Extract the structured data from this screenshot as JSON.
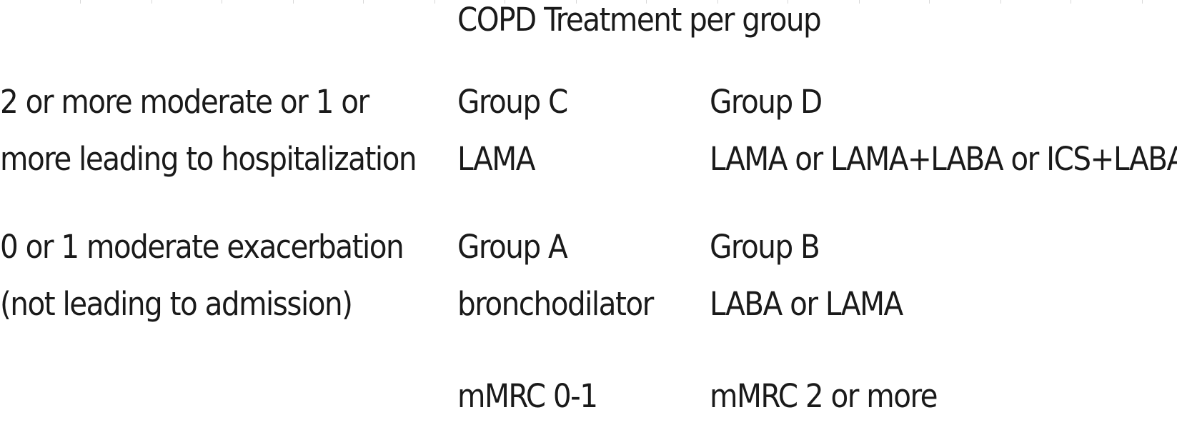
{
  "title": "COPD Treatment per group",
  "rows": {
    "high_risk_label": [
      "2 or more moderate or 1 or",
      "more leading to hospitalization"
    ],
    "low_risk_label": [
      "0 or 1 moderate exacerbation",
      "(not leading to admission)"
    ]
  },
  "groups": {
    "c": {
      "name": "Group C",
      "treatment": "LAMA"
    },
    "d": {
      "name": "Group D",
      "treatment": "LAMA or LAMA+LABA or ICS+LABA"
    },
    "a": {
      "name": "Group A",
      "treatment": "bronchodilator"
    },
    "b": {
      "name": "Group B",
      "treatment": "LABA or LAMA"
    }
  },
  "columns": {
    "left": "mMRC 0-1",
    "right": "mMRC 2 or more"
  }
}
